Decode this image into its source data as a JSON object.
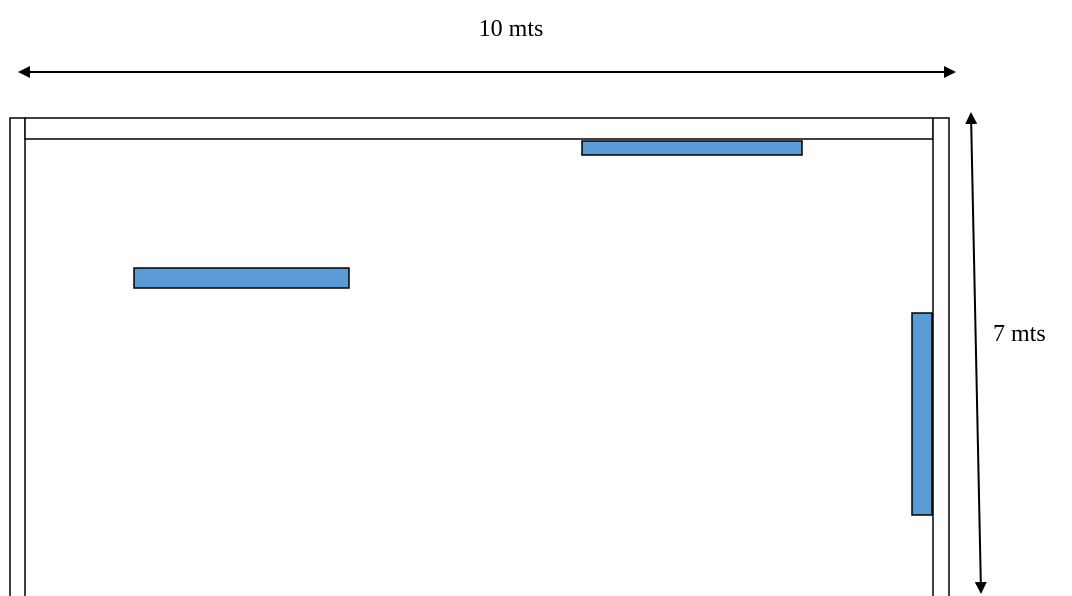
{
  "dimensions": {
    "width_label": "10 mts",
    "height_label": "7 mts"
  },
  "colors": {
    "line": "#000000",
    "wall_fill": "#ffffff",
    "panel_fill": "#5b9bd5"
  }
}
